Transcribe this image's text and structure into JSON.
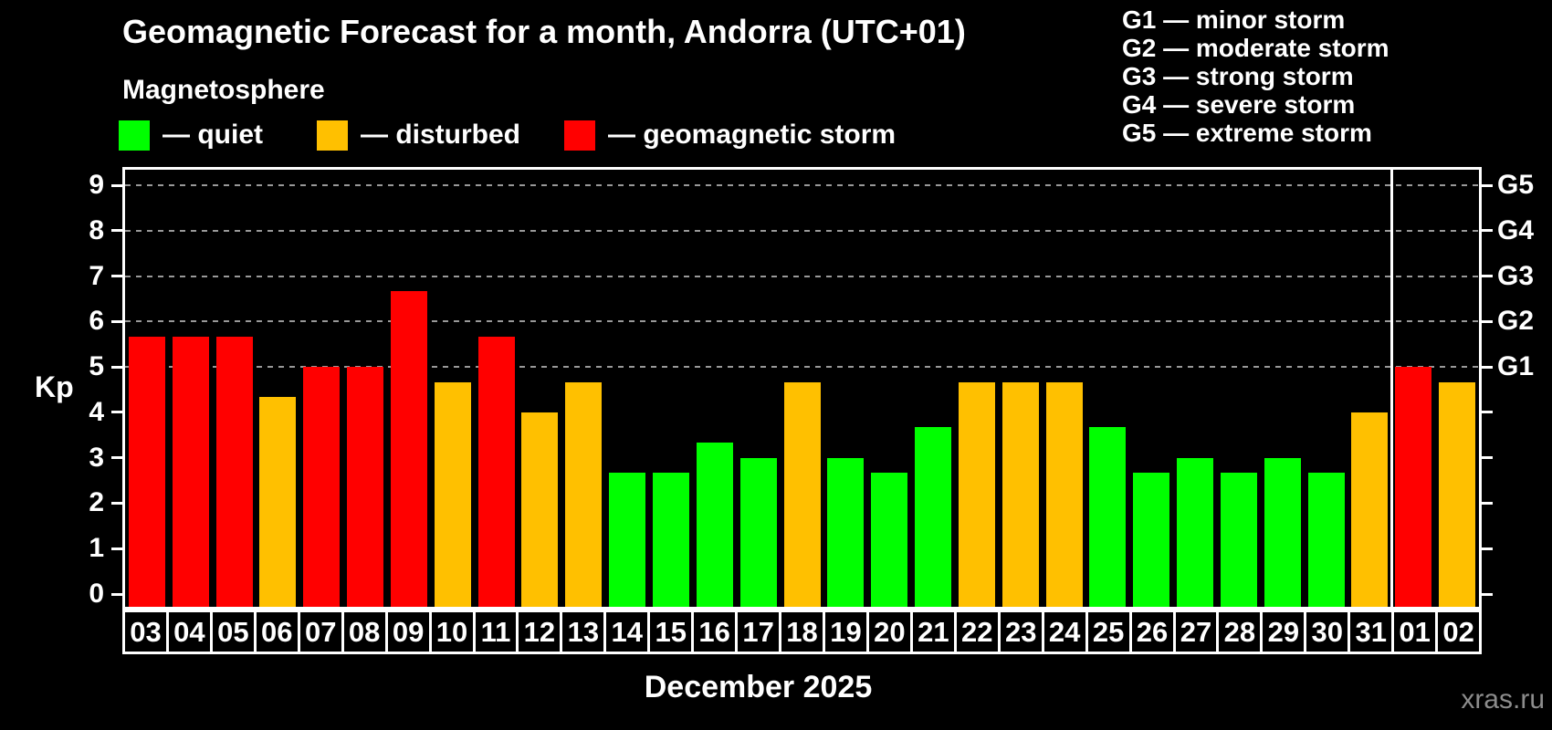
{
  "header": {
    "title": "Geomagnetic Forecast for a month, Andorra (UTC+01)",
    "subtitle": "Magnetosphere"
  },
  "legend": {
    "items": [
      {
        "status": "quiet",
        "label": "— quiet"
      },
      {
        "status": "disturbed",
        "label": "— disturbed"
      },
      {
        "status": "storm",
        "label": "— geomagnetic storm"
      }
    ]
  },
  "g_legend": {
    "items": [
      "G1 — minor storm",
      "G2 — moderate storm",
      "G3 — strong storm",
      "G4 — severe storm",
      "G5 — extreme storm"
    ]
  },
  "axes": {
    "y_label": "Kp",
    "y_ticks": [
      0,
      1,
      2,
      3,
      4,
      5,
      6,
      7,
      8,
      9
    ],
    "right_labels": [
      {
        "text": "G1",
        "kp": 5
      },
      {
        "text": "G2",
        "kp": 6
      },
      {
        "text": "G3",
        "kp": 7
      },
      {
        "text": "G4",
        "kp": 8
      },
      {
        "text": "G5",
        "kp": 9
      }
    ],
    "x_label": "December 2025"
  },
  "watermark": "xras.ru",
  "colors": {
    "quiet": "#00ff00",
    "disturbed": "#ffc000",
    "storm": "#ff0000",
    "grid": "#999999",
    "axis": "#ffffff",
    "watermark": "#8c8c8c",
    "background": "#000000"
  },
  "chart_data": {
    "type": "bar",
    "title": "Geomagnetic Forecast for a month, Andorra (UTC+01)",
    "xlabel": "December 2025",
    "ylabel": "Kp",
    "ylim": [
      0,
      9
    ],
    "grid_levels": [
      5,
      6,
      7,
      8,
      9
    ],
    "legend_position": "top",
    "categories": [
      "03",
      "04",
      "05",
      "06",
      "07",
      "08",
      "09",
      "10",
      "11",
      "12",
      "13",
      "14",
      "15",
      "16",
      "17",
      "18",
      "19",
      "20",
      "21",
      "22",
      "23",
      "24",
      "25",
      "26",
      "27",
      "28",
      "29",
      "30",
      "31",
      "01",
      "02"
    ],
    "values": [
      5.67,
      5.67,
      5.67,
      4.33,
      5.0,
      5.0,
      6.67,
      4.67,
      5.67,
      4.0,
      4.67,
      2.67,
      2.67,
      3.33,
      3.0,
      4.67,
      3.0,
      2.67,
      3.67,
      4.67,
      4.67,
      4.67,
      3.67,
      2.67,
      3.0,
      2.67,
      3.0,
      2.67,
      4.0,
      5.0,
      4.67
    ],
    "statuses": [
      "storm",
      "storm",
      "storm",
      "disturbed",
      "storm",
      "storm",
      "storm",
      "disturbed",
      "storm",
      "disturbed",
      "disturbed",
      "quiet",
      "quiet",
      "quiet",
      "quiet",
      "disturbed",
      "quiet",
      "quiet",
      "quiet",
      "disturbed",
      "disturbed",
      "disturbed",
      "quiet",
      "quiet",
      "quiet",
      "quiet",
      "quiet",
      "quiet",
      "disturbed",
      "storm",
      "disturbed"
    ],
    "month_separator_index": 29
  }
}
